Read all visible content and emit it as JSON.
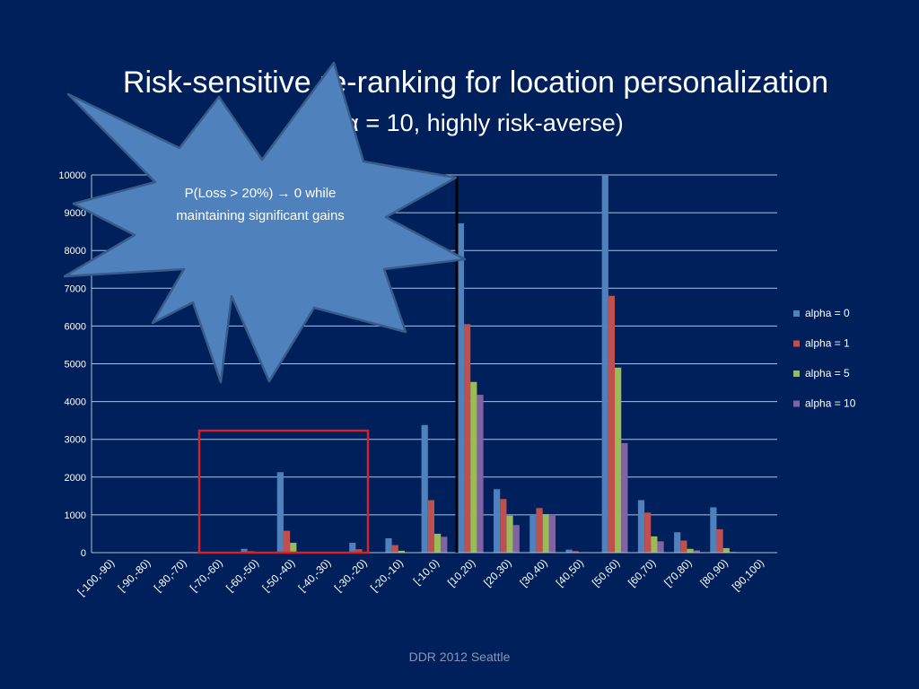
{
  "slide": {
    "title_line1": "Risk-sensitive re-ranking  for location personalization",
    "title_line2": "(α = 10, highly risk-averse)",
    "footer": "DDR 2012 Seattle",
    "callout_text": "P(Loss > 20%)  → 0 while maintaining significant gains"
  },
  "colors": {
    "background": "#00205c",
    "callout_fill": "#4f81bd",
    "callout_stroke": "#385d8a",
    "highlight_box": "#d2232a",
    "marker_line": "#000000"
  },
  "chart_data": {
    "type": "bar",
    "categories": [
      "[-100,-90)",
      "[-90,-80)",
      "[-80,-70)",
      "[-70,-60)",
      "[-60,-50)",
      "[-50,-40)",
      "[-40,-30)",
      "[-30,-20)",
      "[-20,-10)",
      "[-10,0)",
      "[10,20)",
      "[20,30)",
      "[30,40)",
      "[40,50)",
      "[50,60)",
      "[60,70)",
      "[70,80)",
      "[80,90)",
      "[90,100)"
    ],
    "series": [
      {
        "name": "alpha = 0",
        "color": "#4f81bd",
        "values": [
          0,
          0,
          0,
          10,
          100,
          2130,
          0,
          260,
          380,
          3380,
          8720,
          1680,
          1000,
          80,
          10000,
          1390,
          540,
          1200,
          10
        ]
      },
      {
        "name": "alpha = 1",
        "color": "#c0504d",
        "values": [
          0,
          0,
          0,
          5,
          40,
          580,
          0,
          90,
          200,
          1390,
          6050,
          1420,
          1180,
          40,
          6800,
          1060,
          320,
          620,
          0
        ]
      },
      {
        "name": "alpha = 5",
        "color": "#9bbb59",
        "values": [
          0,
          0,
          0,
          0,
          10,
          260,
          0,
          20,
          50,
          500,
          4520,
          980,
          1020,
          10,
          4900,
          430,
          100,
          120,
          0
        ]
      },
      {
        "name": "alpha = 10",
        "color": "#8064a2",
        "values": [
          0,
          0,
          0,
          0,
          10,
          0,
          0,
          10,
          10,
          420,
          4180,
          730,
          1000,
          0,
          2900,
          300,
          60,
          20,
          0
        ]
      }
    ],
    "yticks": [
      "0",
      "1000",
      "2000",
      "3000",
      "4000",
      "5000",
      "6000",
      "7000",
      "8000",
      "9000",
      "10000"
    ],
    "ylim": [
      0,
      10000
    ],
    "grid": true,
    "legend_position": "right"
  }
}
